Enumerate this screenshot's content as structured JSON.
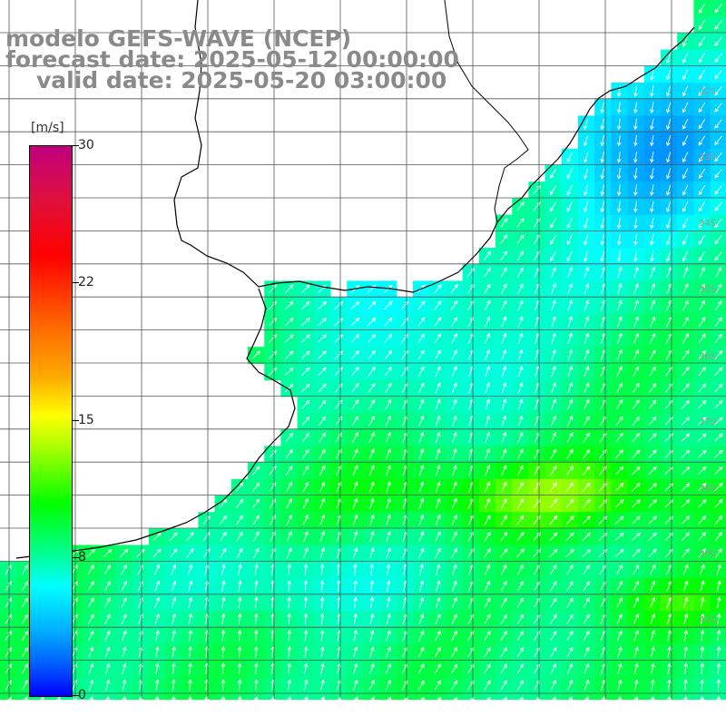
{
  "titles": {
    "line1": "modelo GEFS-WAVE (NCEP)",
    "line2": "forecast date: 2025-05-12 00:00:00",
    "line3": "valid date: 2025-05-20 03:00:00"
  },
  "colorbar": {
    "unit": "[m/s]",
    "ticks": [
      "30",
      "22",
      "15",
      "8",
      "0"
    ],
    "tick_values": [
      30,
      22,
      15,
      8,
      0
    ],
    "range": [
      0,
      30
    ]
  },
  "lat_labels": [
    "32S",
    "33S",
    "34S",
    "35S",
    "36S",
    "37S",
    "38S",
    "39S",
    "40S"
  ],
  "lat_values": [
    32,
    33,
    34,
    35,
    36,
    37,
    38,
    39,
    40
  ],
  "colors": {
    "land": "#ffffff",
    "grid": "#555555",
    "coast": "#000000",
    "arrow": "#ffffff",
    "title": "#8a8a8a"
  }
}
